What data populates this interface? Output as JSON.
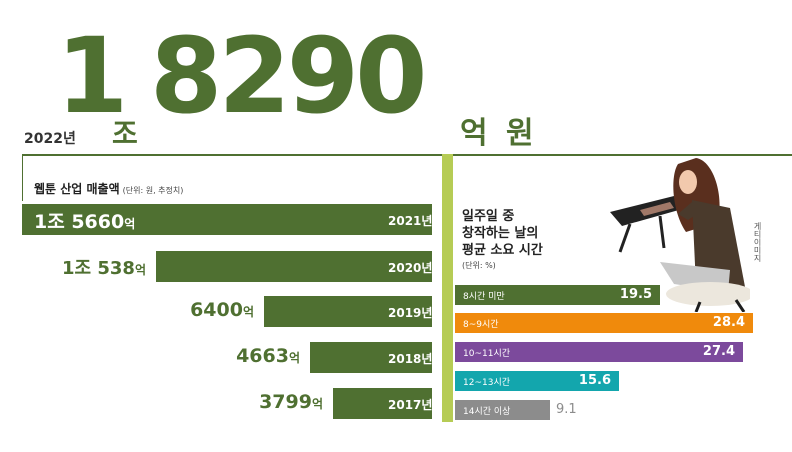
{
  "headline": {
    "year": "2022년",
    "big1": "1",
    "jo": "조",
    "big2": "8290",
    "eok": "억",
    "won": "원"
  },
  "left_title": "웹툰 산업 매출액",
  "left_unit": "(단위: 원, 추정치)",
  "right_title_line1": "일주일 중",
  "right_title_line2": "창작하는 날의",
  "right_title_line3": "평균 소요 시간",
  "right_unit": "(단위: %)",
  "credit": "게티이미지",
  "colors": {
    "green": "#4f7031",
    "lime": "#b6cc55",
    "orange": "#f08a0c",
    "purple": "#7c4a9c",
    "teal": "#13a6ad",
    "gray": "#8c8c8c"
  },
  "chart_data": [
    {
      "type": "bar",
      "title": "웹툰 산업 매출액",
      "unit": "(단위: 원, 추정치)",
      "orientation": "horizontal",
      "categories": [
        "2021년",
        "2020년",
        "2019년",
        "2018년",
        "2017년"
      ],
      "values": [
        15660,
        10538,
        6400,
        4663,
        3799
      ],
      "value_labels": [
        {
          "main": "1조 5660",
          "unit": "억"
        },
        {
          "main": "1조 538",
          "unit": "억"
        },
        {
          "main": "6400",
          "unit": "억"
        },
        {
          "main": "4663",
          "unit": "억"
        },
        {
          "main": "3799",
          "unit": "억"
        }
      ]
    },
    {
      "type": "bar",
      "title": "일주일 중 창작하는 날의 평균 소요 시간",
      "unit": "(단위: %)",
      "orientation": "horizontal",
      "categories": [
        "8시간 미만",
        "8~9시간",
        "10~11시간",
        "12~13시간",
        "14시간 이상"
      ],
      "values": [
        19.5,
        28.4,
        27.4,
        15.6,
        9.1
      ]
    }
  ]
}
